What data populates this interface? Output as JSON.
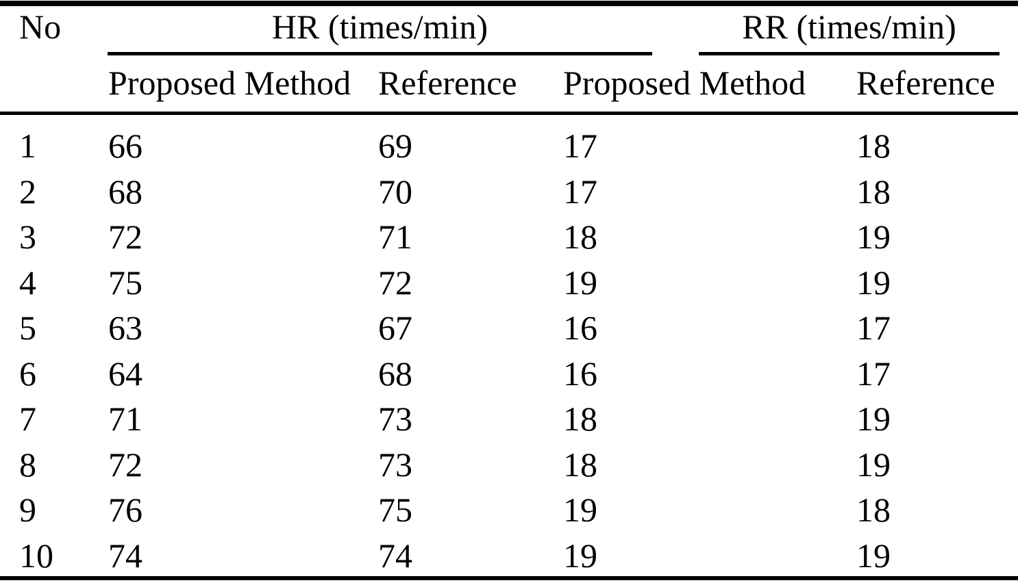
{
  "colors": {
    "background": "#ffffff",
    "text": "#000000",
    "rule": "#000000"
  },
  "table": {
    "header": {
      "no": "No",
      "hr_group": "HR (times/min)",
      "rr_group": "RR (times/min)",
      "hr_proposed": "Proposed Method",
      "hr_reference": "Reference",
      "rr_proposed": "Proposed Method",
      "rr_reference": "Reference"
    },
    "rows": [
      [
        "1",
        "66",
        "69",
        "17",
        "18"
      ],
      [
        "2",
        "68",
        "70",
        "17",
        "18"
      ],
      [
        "3",
        "72",
        "71",
        "18",
        "19"
      ],
      [
        "4",
        "75",
        "72",
        "19",
        "19"
      ],
      [
        "5",
        "63",
        "67",
        "16",
        "17"
      ],
      [
        "6",
        "64",
        "68",
        "16",
        "17"
      ],
      [
        "7",
        "71",
        "73",
        "18",
        "19"
      ],
      [
        "8",
        "72",
        "73",
        "18",
        "19"
      ],
      [
        "9",
        "76",
        "75",
        "19",
        "18"
      ],
      [
        "10",
        "74",
        "74",
        "19",
        "19"
      ]
    ]
  }
}
